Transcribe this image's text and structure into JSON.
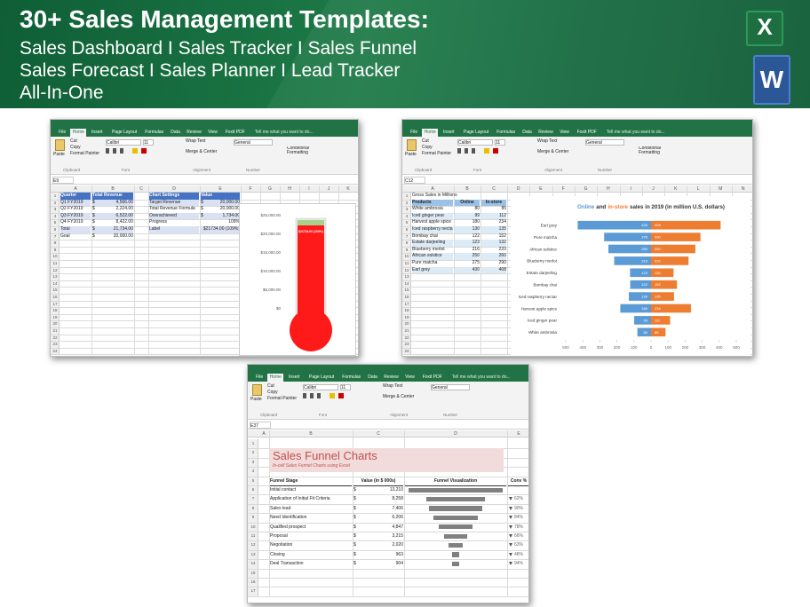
{
  "header": {
    "title": "30+ Sales Management Templates:",
    "lines": [
      "Sales Dashboard I Sales Tracker I Sales Funnel",
      "Sales Forecast I Sales Planner I Lead Tracker",
      "All-In-One"
    ],
    "icons": [
      "X",
      "W"
    ]
  },
  "ribbon": {
    "tabs": [
      "File",
      "Home",
      "Insert",
      "Page Layout",
      "Formulas",
      "Data",
      "Review",
      "View",
      "Foxit PDF"
    ],
    "search": "Tell me what you want to do...",
    "paste": "Paste",
    "clipboard": [
      "Cut",
      "Copy",
      "Format Painter"
    ],
    "font": "Calibri",
    "size": "11",
    "wrap": "Wrap Text",
    "merge": "Merge & Center",
    "number": "General",
    "conditional": "Conditional Formatting",
    "groups": [
      "Clipboard",
      "Font",
      "Alignment",
      "Number"
    ]
  },
  "thermometer": {
    "cell": "E9",
    "columns": [
      "A",
      "B",
      "C",
      "D",
      "E",
      "F",
      "G",
      "H",
      "I",
      "J",
      "K"
    ],
    "row_numbers": [
      1,
      2,
      3,
      4,
      5,
      6,
      7,
      8,
      9,
      10,
      11,
      12,
      13,
      14,
      15,
      16,
      17,
      18,
      19,
      20,
      21,
      22,
      23,
      24
    ],
    "quarters": {
      "header": [
        "Quarter",
        "Total Revenue"
      ],
      "rows": [
        [
          "Q1 FY2019",
          "$",
          "4,566.00"
        ],
        [
          "Q2 FY2019",
          "$",
          "2,224.00"
        ],
        [
          "Q3 FY2019",
          "$",
          "6,522.00"
        ],
        [
          "Q4 FY2019",
          "$",
          "8,422.00"
        ],
        [
          "Total",
          "$",
          "21,734.00"
        ],
        [
          "Goal",
          "$",
          "20,000.00"
        ]
      ]
    },
    "settings": {
      "header": [
        "Chart Settings",
        "Value"
      ],
      "rows": [
        [
          "Target Revenue",
          "$",
          "20,000.00"
        ],
        [
          "Total Revenue Formula",
          "$",
          "20,000.00"
        ],
        [
          "Overachieved",
          "$",
          "1,734.00"
        ],
        [
          "Progress",
          "109%"
        ],
        [
          "Label",
          "$21734.00 (109%)"
        ]
      ]
    },
    "axis": [
      "$25,000.00",
      "$20,000.00",
      "$15,000.00",
      "$10,000.00",
      "$5,000.00",
      "$0"
    ]
  },
  "tea": {
    "cell": "C12",
    "columns": [
      "A",
      "B",
      "C",
      "D",
      "E",
      "F",
      "G",
      "H",
      "I",
      "J",
      "K",
      "L",
      "M",
      "N"
    ],
    "row_numbers": [
      1,
      2,
      3,
      4,
      5,
      6,
      7,
      8,
      9,
      10,
      11,
      12,
      13,
      14,
      15,
      16,
      17,
      18,
      19,
      20,
      21,
      22,
      23,
      24
    ],
    "heading": "Gross Sales in Millions",
    "header": [
      "Products",
      "Online",
      "In-store"
    ],
    "rows": [
      [
        "White ambrosia",
        80,
        85
      ],
      [
        "Iced ginger pear",
        99,
        112
      ],
      [
        "Harvest apple spice",
        180,
        234
      ],
      [
        "Iced raspberry nectar",
        130,
        135
      ],
      [
        "Bombay chai",
        122,
        152
      ],
      [
        "Estate darjeeling",
        123,
        132
      ],
      [
        "Blueberry merlot",
        216,
        220
      ],
      [
        "African solstice",
        250,
        260
      ],
      [
        "Pure matcha",
        275,
        290
      ],
      [
        "Earl grey",
        430,
        408
      ]
    ],
    "chart": {
      "type": "bar",
      "title_parts": [
        "Online",
        "and",
        "in-store",
        "sales in 2019 (in million U.S. dollars)"
      ],
      "colors": [
        "#5b9bd5",
        "#ed7d31"
      ],
      "xlim": [
        -500,
        500
      ],
      "xticks": [
        {
          "value": -500,
          "label": "500"
        },
        {
          "value": -400,
          "label": "400"
        },
        {
          "value": -300,
          "label": "300"
        },
        {
          "value": -200,
          "label": "200"
        },
        {
          "value": -100,
          "label": "100"
        },
        0,
        100,
        200,
        300,
        400,
        500
      ]
    }
  },
  "funnel": {
    "cell": "E37",
    "columns": [
      "A",
      "B",
      "C",
      "D",
      "E"
    ],
    "row_numbers": [
      1,
      2,
      3,
      4,
      5,
      6,
      7,
      8,
      9,
      10,
      11,
      12,
      13,
      14,
      15,
      16,
      17
    ],
    "title": "Sales Funnel Charts",
    "subtitle": "In-cell Sales Funnel Charts using Excel",
    "header": [
      "Funnel Stage",
      "Value (in $ 000s)",
      "Funnel Visualization",
      "Conv %"
    ],
    "currency": "$",
    "rows": [
      {
        "stage": "Initial contact",
        "value": {
          "value": 13210,
          "label": "13,210"
        }
      },
      {
        "stage": "Application of Initial Fit Criteria",
        "value": {
          "value": 8258,
          "label": "8,258"
        },
        "conv": "62%"
      },
      {
        "stage": "Sales lead",
        "value": {
          "value": 7406,
          "label": "7,406"
        },
        "conv": "90%"
      },
      {
        "stage": "Need Identification",
        "value": {
          "value": 6206,
          "label": "6,206"
        },
        "conv": "84%"
      },
      {
        "stage": "Qualified prospect",
        "value": {
          "value": 4847,
          "label": "4,847"
        },
        "conv": "78%"
      },
      {
        "stage": "Proposal",
        "value": {
          "value": 3215,
          "label": "3,215"
        },
        "conv": "66%"
      },
      {
        "stage": "Negotiation",
        "value": {
          "value": 2020,
          "label": "2,020"
        },
        "conv": "63%"
      },
      {
        "stage": "Closing",
        "value": {
          "value": 963,
          "label": "963"
        },
        "conv": "48%"
      },
      {
        "stage": "Deal Transaction",
        "value": {
          "value": 904,
          "label": "904"
        },
        "conv": "94%"
      }
    ]
  }
}
